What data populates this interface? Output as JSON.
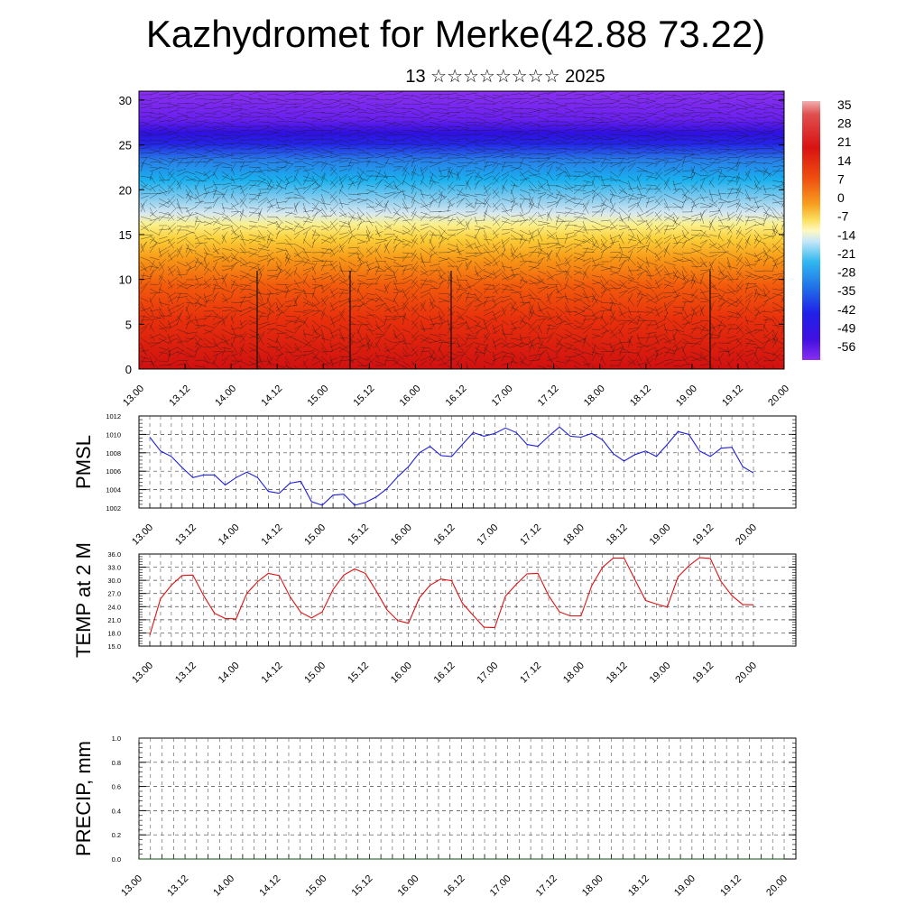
{
  "title": "Kazhydromet for Merke(42.88 73.22)",
  "subtitle": "13 ☆☆☆☆☆☆☆☆ 2025",
  "colors": {
    "pmsl_line": "#1f1fdd",
    "temp_line": "#e01010",
    "precip_line": "#0a4f0a"
  },
  "chart_data": [
    {
      "type": "heatmap",
      "title": "",
      "x_tick_labels": [
        "13.00",
        "13.12",
        "14.00",
        "14.12",
        "15.00",
        "15.12",
        "16.00",
        "16.12",
        "17.00",
        "17.12",
        "18.00",
        "18.12",
        "19.00",
        "19.12",
        "20.00"
      ],
      "y_ticks": [
        0,
        5,
        10,
        15,
        20,
        25,
        30
      ],
      "ylim": [
        0,
        31
      ],
      "colorbar_labels": [
        "35",
        "28",
        "21",
        "14",
        "7",
        "0",
        "-7",
        "-14",
        "-21",
        "-28",
        "-35",
        "-42",
        "-49",
        "-56"
      ],
      "overlay": "wind barbs",
      "description_levels": {
        "warm_below": 16,
        "cold_above": 22
      }
    },
    {
      "type": "line",
      "ylabel": "PMSL",
      "ylim": [
        1002,
        1012
      ],
      "y_ticks": [
        "1002",
        "1004",
        "1006",
        "1008",
        "1010",
        "1012"
      ],
      "x_tick_labels": [
        "13.00",
        "13.12",
        "14.00",
        "14.12",
        "15.00",
        "15.12",
        "16.00",
        "16.12",
        "17.00",
        "17.12",
        "18.00",
        "18.12",
        "19.00",
        "19.12",
        "20.00"
      ],
      "series": [
        {
          "values": [
            1009.7,
            1008.2,
            1007.6,
            1006.4,
            1005.3,
            1005.6,
            1005.6,
            1004.5,
            1005.3,
            1005.9,
            1005.3,
            1003.8,
            1003.6,
            1004.7,
            1004.9,
            1002.7,
            1002.3,
            1003.4,
            1003.5,
            1002.3,
            1002.6,
            1003.2,
            1004.1,
            1005.4,
            1006.5,
            1008.0,
            1008.7,
            1007.7,
            1007.6,
            1008.9,
            1010.2,
            1009.8,
            1010.1,
            1010.7,
            1010.2,
            1008.9,
            1008.7,
            1009.8,
            1010.8,
            1009.8,
            1009.7,
            1010.1,
            1009.4,
            1007.9,
            1007.1,
            1007.8,
            1008.2,
            1007.6,
            1008.9,
            1010.3,
            1010.0,
            1008.2,
            1007.6,
            1008.5,
            1008.6,
            1006.5,
            1005.8
          ]
        }
      ]
    },
    {
      "type": "line",
      "ylabel": "TEMP at 2 M",
      "ylim": [
        15,
        36
      ],
      "y_ticks": [
        "15.0",
        "18.0",
        "21.0",
        "24.0",
        "27.0",
        "30.0",
        "33.0",
        "36.0"
      ],
      "x_tick_labels": [
        "13.00",
        "13.12",
        "14.00",
        "14.12",
        "15.00",
        "15.12",
        "16.00",
        "16.12",
        "17.00",
        "17.12",
        "18.00",
        "18.12",
        "19.00",
        "19.12",
        "20.00"
      ],
      "series": [
        {
          "values": [
            17.5,
            25.8,
            28.9,
            31.1,
            31.2,
            26.5,
            22.5,
            21.3,
            21.2,
            27.0,
            29.7,
            31.6,
            31.1,
            26.3,
            22.7,
            21.4,
            22.8,
            27.9,
            31.2,
            32.6,
            31.6,
            27.6,
            23.3,
            20.8,
            20.2,
            26.0,
            28.9,
            30.3,
            29.9,
            24.8,
            22.0,
            19.3,
            19.2,
            26.4,
            29.1,
            31.5,
            31.6,
            26.5,
            22.8,
            21.9,
            21.9,
            28.8,
            33.0,
            35.1,
            35.1,
            30.2,
            25.4,
            24.6,
            23.9,
            30.8,
            33.3,
            35.2,
            35.0,
            29.7,
            26.5,
            24.5,
            24.4
          ]
        }
      ]
    },
    {
      "type": "line",
      "ylabel": "PRECIP, mm",
      "ylim": [
        0,
        1
      ],
      "y_ticks": [
        "0.0",
        "0.2",
        "0.4",
        "0.6",
        "0.8",
        "1.0"
      ],
      "x_tick_labels": [
        "13.00",
        "13.12",
        "14.00",
        "14.12",
        "15.00",
        "15.12",
        "16.00",
        "16.12",
        "17.00",
        "17.12",
        "18.00",
        "18.12",
        "19.00",
        "19.12",
        "20.00"
      ],
      "series": [
        {
          "values": [
            0,
            0,
            0,
            0,
            0,
            0,
            0,
            0,
            0,
            0,
            0,
            0,
            0,
            0,
            0,
            0,
            0,
            0,
            0,
            0,
            0,
            0,
            0,
            0,
            0,
            0,
            0,
            0,
            0,
            0,
            0,
            0,
            0,
            0,
            0,
            0,
            0,
            0,
            0,
            0,
            0,
            0,
            0,
            0,
            0,
            0,
            0,
            0,
            0,
            0,
            0,
            0,
            0,
            0,
            0,
            0,
            0
          ]
        }
      ]
    }
  ]
}
